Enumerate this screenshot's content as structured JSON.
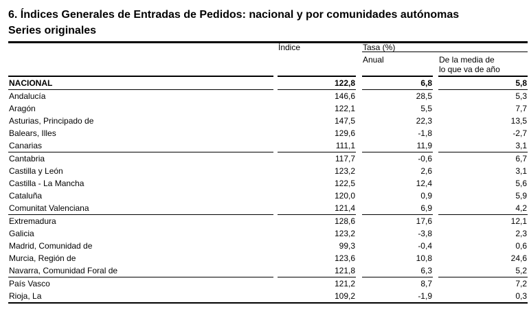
{
  "title": "6. Índices Generales de Entradas de Pedidos: nacional y por comunidades autónomas",
  "subtitle": "Series originales",
  "colors": {
    "background": "#ffffff",
    "text": "#000000",
    "rules": "#000000"
  },
  "table": {
    "columns": {
      "indice": "Índice",
      "tasa": "Tasa (%)",
      "anual": "Anual",
      "media_line1": "De la media de",
      "media_line2": "lo que va de año"
    },
    "rows": [
      {
        "label": "NACIONAL",
        "indice": "122,8",
        "anual": "6,8",
        "media": "5,8",
        "bold": true,
        "group_end": true
      },
      {
        "label": "Andalucía",
        "indice": "146,6",
        "anual": "28,5",
        "media": "5,3"
      },
      {
        "label": "Aragón",
        "indice": "122,1",
        "anual": "5,5",
        "media": "7,7"
      },
      {
        "label": "Asturias, Principado de",
        "indice": "147,5",
        "anual": "22,3",
        "media": "13,5"
      },
      {
        "label": "Balears, Illes",
        "indice": "129,6",
        "anual": "-1,8",
        "media": "-2,7"
      },
      {
        "label": "Canarias",
        "indice": "111,1",
        "anual": "11,9",
        "media": "3,1",
        "group_end": true
      },
      {
        "label": "Cantabria",
        "indice": "117,7",
        "anual": "-0,6",
        "media": "6,7"
      },
      {
        "label": "Castilla y León",
        "indice": "123,2",
        "anual": "2,6",
        "media": "3,1"
      },
      {
        "label": "Castilla - La Mancha",
        "indice": "122,5",
        "anual": "12,4",
        "media": "5,6"
      },
      {
        "label": "Cataluña",
        "indice": "120,0",
        "anual": "0,9",
        "media": "5,9"
      },
      {
        "label": "Comunitat Valenciana",
        "indice": "121,4",
        "anual": "6,9",
        "media": "4,2",
        "group_end": true
      },
      {
        "label": "Extremadura",
        "indice": "128,6",
        "anual": "17,6",
        "media": "12,1"
      },
      {
        "label": "Galicia",
        "indice": "123,2",
        "anual": "-3,8",
        "media": "2,3"
      },
      {
        "label": "Madrid, Comunidad de",
        "indice": "99,3",
        "anual": "-0,4",
        "media": "0,6"
      },
      {
        "label": "Murcia, Región de",
        "indice": "123,6",
        "anual": "10,8",
        "media": "24,6"
      },
      {
        "label": "Navarra, Comunidad Foral de",
        "indice": "121,8",
        "anual": "6,3",
        "media": "5,2",
        "group_end": true
      },
      {
        "label": "País Vasco",
        "indice": "121,2",
        "anual": "8,7",
        "media": "7,2"
      },
      {
        "label": "Rioja, La",
        "indice": "109,2",
        "anual": "-1,9",
        "media": "0,3"
      }
    ]
  }
}
